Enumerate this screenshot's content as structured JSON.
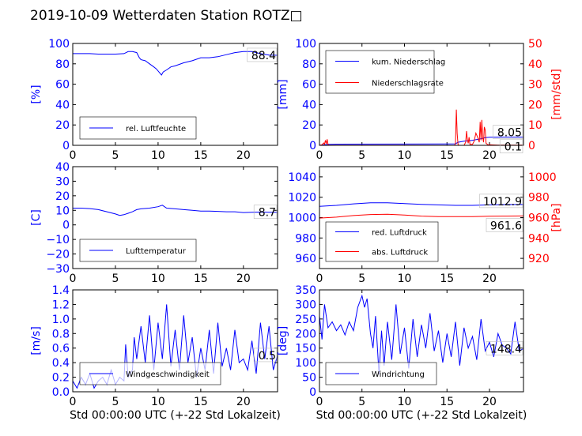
{
  "page": {
    "title": "2019-10-09 Wetterdaten Station ROTZ□"
  },
  "chart_data": [
    {
      "type": "line",
      "id": "humidity",
      "ylabel": "[%]",
      "xlim": [
        0,
        24
      ],
      "ylim": [
        0,
        100
      ],
      "xticks": [
        "0",
        "5",
        "10",
        "15",
        "20"
      ],
      "yticks": [
        "0",
        "20",
        "40",
        "60",
        "80",
        "100"
      ],
      "series": [
        {
          "name": "rel. Luftfeuchte",
          "color": "#0000ff",
          "x": [
            0,
            1,
            2,
            3,
            4,
            5,
            6,
            6.5,
            7,
            7.5,
            7.8,
            8,
            8.5,
            9,
            9.5,
            9.8,
            10.2,
            10.4,
            10.6,
            11,
            11.5,
            12,
            13,
            14,
            15,
            16,
            17,
            18,
            19,
            20,
            21,
            22,
            23,
            24
          ],
          "values": [
            90,
            90,
            90,
            89.5,
            89.5,
            89.5,
            90,
            92,
            92,
            91,
            86,
            84,
            83,
            80,
            77,
            75,
            71,
            69,
            72,
            74,
            77,
            78,
            81,
            83,
            86,
            86,
            87,
            89,
            91,
            92,
            92,
            90,
            88.5,
            88.4
          ]
        }
      ],
      "last_value_label": "88.4",
      "legend_position": "lower-left"
    },
    {
      "type": "line",
      "id": "precipitation",
      "ylabel": "[mm]",
      "ylabel_right": "[mm/std]",
      "xlim": [
        0,
        24
      ],
      "ylim": [
        0,
        100
      ],
      "ylim_right": [
        0,
        50
      ],
      "xticks": [
        "0",
        "5",
        "10",
        "15",
        "20"
      ],
      "yticks": [
        "0",
        "20",
        "40",
        "60",
        "80",
        "100"
      ],
      "yticks_right": [
        "0",
        "10",
        "20",
        "30",
        "40",
        "50"
      ],
      "series": [
        {
          "name": "kum. Niederschlag",
          "color": "#0000ff",
          "axis": "left",
          "x": [
            0,
            0.5,
            1,
            2,
            15,
            16,
            16.3,
            17,
            18,
            19,
            19.5,
            20,
            22,
            24
          ],
          "values": [
            0,
            0.5,
            1,
            1.2,
            1.3,
            1.5,
            3,
            4,
            5,
            6.5,
            7.5,
            8,
            8.05,
            8.05
          ]
        },
        {
          "name": "Niederschlagsrate",
          "color": "#ff0000",
          "axis": "right",
          "x": [
            0,
            0.3,
            0.5,
            0.6,
            0.7,
            0.8,
            0.9,
            1,
            1.1,
            15.9,
            16,
            16.1,
            16.2,
            16.3,
            16.4,
            16.5,
            17,
            17.2,
            17.3,
            17.4,
            17.5,
            17.6,
            17.7,
            18,
            18.2,
            18.4,
            18.6,
            18.8,
            18.9,
            19,
            19.1,
            19.2,
            19.3,
            19.4,
            19.5,
            19.6,
            19.8,
            20,
            21,
            24
          ],
          "values": [
            0,
            0.3,
            1.2,
            0.5,
            2.5,
            0.8,
            3,
            0.5,
            0.1,
            0,
            1,
            17.5,
            6,
            0.5,
            0,
            0,
            0,
            1.5,
            7,
            3,
            1,
            4,
            0.5,
            0.5,
            2,
            6,
            4,
            1.5,
            11.5,
            2.5,
            12.5,
            4,
            1.5,
            9,
            7.5,
            1,
            0.3,
            0.3,
            0.1,
            0.1
          ]
        }
      ],
      "last_value_labels": [
        "8.05",
        "0.1"
      ],
      "legend_position": "upper-left"
    },
    {
      "type": "line",
      "id": "temperature",
      "ylabel": "[C]",
      "xlim": [
        0,
        24
      ],
      "ylim": [
        -30,
        40
      ],
      "xticks": [
        "0",
        "5",
        "10",
        "15",
        "20"
      ],
      "yticks": [
        "−30",
        "−20",
        "−10",
        "0",
        "10",
        "20",
        "30",
        "40"
      ],
      "series": [
        {
          "name": "Lufttemperatur",
          "color": "#0000ff",
          "x": [
            0,
            1,
            2,
            3,
            4,
            5,
            5.5,
            6,
            6.5,
            7,
            7.5,
            8,
            9,
            10,
            10.5,
            11,
            12,
            13,
            14,
            15,
            16,
            17,
            18,
            19,
            20,
            21,
            22,
            23,
            24
          ],
          "values": [
            11.5,
            11.5,
            11.2,
            10.5,
            9,
            7.5,
            6.5,
            7,
            8,
            9,
            10.5,
            11,
            11.5,
            12.5,
            13.5,
            11.5,
            11,
            10.5,
            10,
            9.5,
            9.5,
            9.3,
            9,
            9,
            8.5,
            8.7,
            8.8,
            8.7,
            8.7
          ]
        }
      ],
      "last_value_label": "8.7",
      "legend_position": "lower-left"
    },
    {
      "type": "line",
      "id": "pressure",
      "ylabel_right": "[hPa]",
      "xlim": [
        0,
        24
      ],
      "ylim": [
        950,
        1050
      ],
      "ylim_right": [
        910,
        1010
      ],
      "xticks": [
        "0",
        "5",
        "10",
        "15",
        "20"
      ],
      "yticks": [
        "960",
        "980",
        "1000",
        "1020",
        "1040"
      ],
      "yticks_right": [
        "920",
        "940",
        "960",
        "980",
        "1000"
      ],
      "series": [
        {
          "name": "red. Luftdruck",
          "color": "#0000ff",
          "axis": "left",
          "x": [
            0,
            2,
            4,
            6,
            8,
            10,
            12,
            14,
            16,
            18,
            20,
            22,
            24
          ],
          "values": [
            1011,
            1012,
            1013.5,
            1014.5,
            1014.5,
            1013.8,
            1013,
            1012.5,
            1012,
            1012,
            1012.5,
            1012.8,
            1012.9
          ]
        },
        {
          "name": "abs. Luftdruck",
          "color": "#ff0000",
          "axis": "right",
          "x": [
            0,
            2,
            4,
            6,
            8,
            10,
            12,
            14,
            16,
            18,
            20,
            22,
            24
          ],
          "values": [
            959.5,
            960.5,
            962,
            963,
            963.3,
            962.5,
            961.5,
            961,
            961,
            961,
            961.3,
            961.5,
            961.6
          ]
        }
      ],
      "last_value_labels": [
        "1012.9",
        "961.6"
      ],
      "legend_position": "lower-left"
    },
    {
      "type": "line",
      "id": "windspeed",
      "ylabel": "[m/s]",
      "xlabel": "Std 00:00:00 UTC (+-22 Std Lokalzeit)",
      "xlim": [
        0,
        24
      ],
      "ylim": [
        0,
        1.4
      ],
      "xticks": [
        "0",
        "5",
        "10",
        "15",
        "20"
      ],
      "yticks": [
        "0.0",
        "0.2",
        "0.4",
        "0.6",
        "0.8",
        "1.0",
        "1.2",
        "1.4"
      ],
      "series": [
        {
          "name": "Windgeschwindigkeit",
          "color": "#0000ff",
          "x": [
            0,
            0.5,
            1,
            1.5,
            2,
            2.5,
            3,
            3.5,
            4,
            4.5,
            5,
            5.5,
            6,
            6.2,
            6.5,
            7,
            7.2,
            7.5,
            8,
            8.5,
            9,
            9.5,
            10,
            10.5,
            11,
            11.5,
            12,
            12.5,
            13,
            13.5,
            14,
            14.5,
            15,
            15.5,
            16,
            16.5,
            17,
            17.5,
            18,
            18.5,
            19,
            19.5,
            20,
            20.5,
            21,
            21.5,
            22,
            22.5,
            23,
            23.5,
            24
          ],
          "values": [
            0.15,
            0.05,
            0.2,
            0.1,
            0.25,
            0.05,
            0.15,
            0.2,
            0.1,
            0.3,
            0.1,
            0.2,
            0.15,
            0.65,
            0.2,
            0.3,
            0.75,
            0.45,
            0.9,
            0.4,
            1.05,
            0.3,
            0.95,
            0.45,
            1.2,
            0.35,
            0.85,
            0.3,
            1.05,
            0.4,
            0.75,
            0.2,
            0.6,
            0.3,
            0.85,
            0.25,
            0.95,
            0.35,
            0.6,
            0.3,
            0.85,
            0.4,
            0.45,
            0.3,
            0.7,
            0.25,
            0.95,
            0.45,
            0.9,
            0.3,
            0.5
          ]
        }
      ],
      "last_value_label": "0.5",
      "legend_position": "lower-left"
    },
    {
      "type": "line",
      "id": "winddirection",
      "ylabel": "[deg]",
      "xlabel": "Std 00:00:00 UTC (+-22 Std Lokalzeit)",
      "xlim": [
        0,
        24
      ],
      "ylim": [
        0,
        350
      ],
      "xticks": [
        "0",
        "5",
        "10",
        "15",
        "20"
      ],
      "yticks": [
        "0",
        "50",
        "100",
        "150",
        "200",
        "250",
        "300",
        "350"
      ],
      "series": [
        {
          "name": "Windrichtung",
          "color": "#0000ff",
          "x": [
            0,
            0.3,
            0.6,
            1,
            1.5,
            2,
            2.5,
            3,
            3.5,
            4,
            4.5,
            5,
            5.3,
            5.6,
            6,
            6.3,
            6.6,
            7,
            7.3,
            7.6,
            8,
            8.5,
            9,
            9.5,
            10,
            10.5,
            11,
            11.5,
            12,
            12.5,
            13,
            13.5,
            14,
            14.5,
            15,
            15.5,
            16,
            16.5,
            17,
            17.5,
            18,
            18.5,
            19,
            19.5,
            20,
            20.5,
            21,
            21.5,
            22,
            22.5,
            23,
            23.5,
            24
          ],
          "values": [
            260,
            180,
            300,
            220,
            240,
            210,
            230,
            195,
            240,
            210,
            290,
            330,
            290,
            320,
            200,
            150,
            260,
            60,
            210,
            90,
            240,
            110,
            300,
            130,
            220,
            80,
            250,
            120,
            230,
            150,
            270,
            140,
            210,
            100,
            200,
            120,
            240,
            90,
            220,
            150,
            190,
            110,
            250,
            140,
            170,
            120,
            200,
            160,
            150,
            130,
            240,
            140,
            148.4
          ]
        }
      ],
      "last_value_label": "148.4",
      "legend_position": "lower-left"
    }
  ]
}
